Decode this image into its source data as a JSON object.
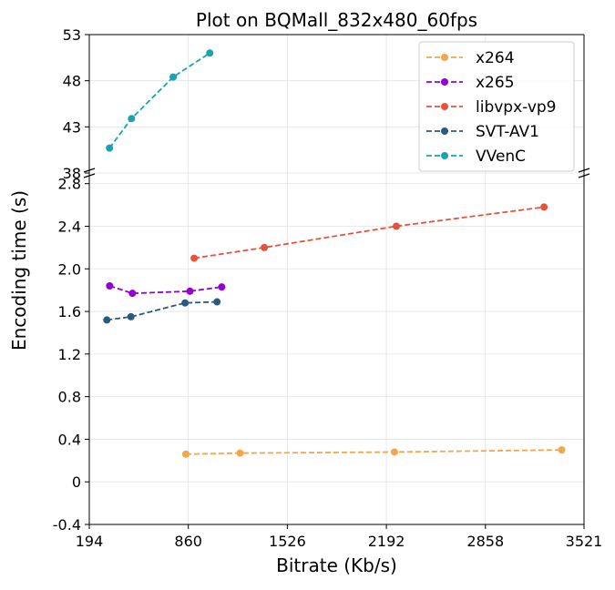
{
  "chart_data": {
    "type": "line",
    "title": "Plot on BQMall_832x480_60fps",
    "xlabel": "Bitrate (Kb/s)",
    "ylabel": "Encoding time (s)",
    "xlim": [
      194,
      3521
    ],
    "x_ticks": [
      194,
      860,
      1526,
      2192,
      2858,
      3521
    ],
    "x_tick_labels": [
      "194",
      "860",
      "1526",
      "2192",
      "2858",
      "3521"
    ],
    "top_panel": {
      "ylim": [
        38,
        53
      ],
      "y_ticks": [
        38,
        43,
        48,
        53
      ],
      "y_tick_labels": [
        "38",
        "43",
        "48",
        "53"
      ]
    },
    "bottom_panel": {
      "ylim": [
        -0.4,
        2.9
      ],
      "y_ticks": [
        -0.4,
        0,
        0.4,
        0.8,
        1.2,
        1.6,
        2.0,
        2.4,
        2.8
      ],
      "y_tick_labels": [
        "-0.4",
        "0",
        "0.4",
        "0.8",
        "1.2",
        "1.6",
        "2.0",
        "2.4",
        "2.8"
      ]
    },
    "grid": true,
    "legend_position": "top-right",
    "series": [
      {
        "name": "x264",
        "color": "#F5A54A",
        "panel": "bottom",
        "points": [
          [
            843,
            0.26
          ],
          [
            1208,
            0.27
          ],
          [
            2246,
            0.28
          ],
          [
            3371,
            0.3
          ]
        ]
      },
      {
        "name": "x265",
        "color": "#9400D3",
        "panel": "bottom",
        "points": [
          [
            331,
            1.84
          ],
          [
            484,
            1.77
          ],
          [
            871,
            1.79
          ],
          [
            1085,
            1.83
          ]
        ]
      },
      {
        "name": "libvpx-vp9",
        "color": "#E5533D",
        "panel": "bottom",
        "points": [
          [
            899,
            2.1
          ],
          [
            1371,
            2.2
          ],
          [
            2259,
            2.4
          ],
          [
            3252,
            2.58
          ]
        ]
      },
      {
        "name": "SVT-AV1",
        "color": "#2A5A7E",
        "panel": "bottom",
        "points": [
          [
            312,
            1.52
          ],
          [
            474,
            1.55
          ],
          [
            838,
            1.68
          ],
          [
            1053,
            1.69
          ]
        ]
      },
      {
        "name": "VVenC",
        "color": "#17A3B6",
        "panel": "top",
        "points": [
          [
            330,
            40.7
          ],
          [
            478,
            43.9
          ],
          [
            758,
            48.4
          ],
          [
            1004,
            51.0
          ]
        ]
      }
    ]
  }
}
